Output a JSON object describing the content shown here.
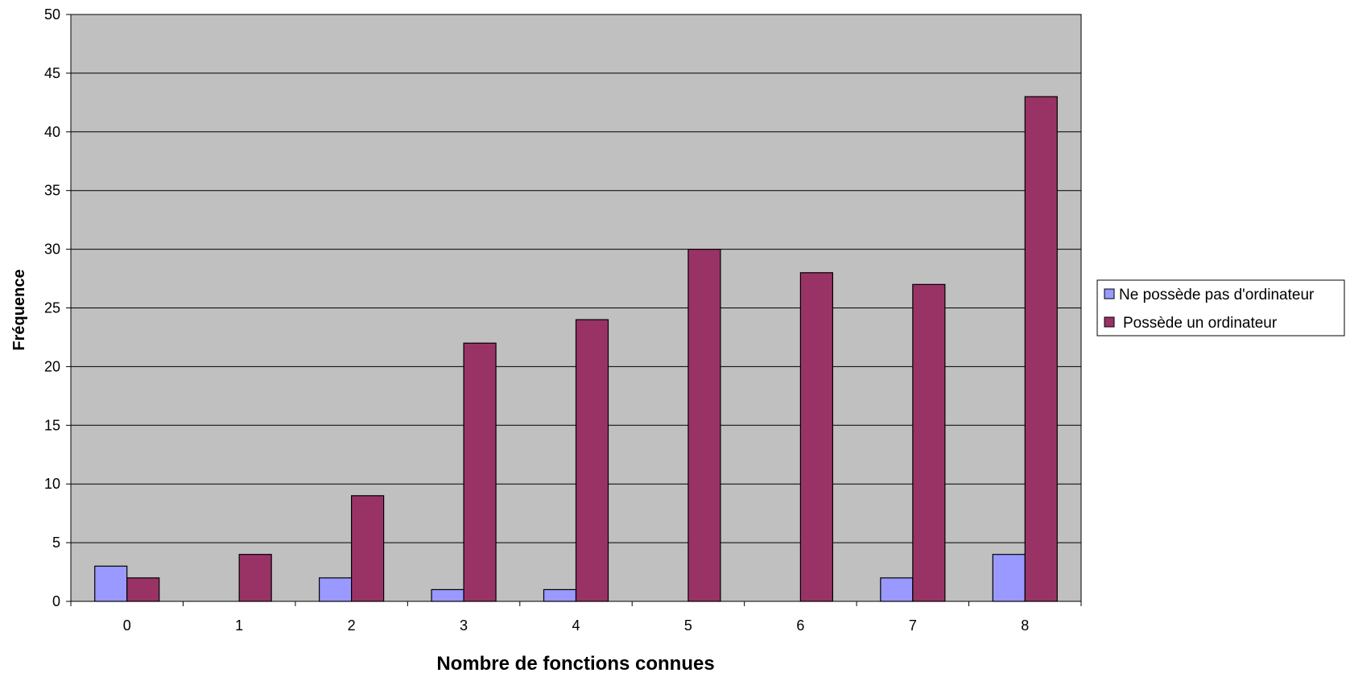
{
  "chart_data": {
    "type": "bar",
    "xlabel": "Nombre de fonctions connues",
    "ylabel": "Fréquence",
    "categories": [
      "0",
      "1",
      "2",
      "3",
      "4",
      "5",
      "6",
      "7",
      "8"
    ],
    "ylim": [
      0,
      50
    ],
    "yticks": [
      "0",
      "5",
      "10",
      "15",
      "20",
      "25",
      "30",
      "35",
      "40",
      "45",
      "50"
    ],
    "grid": true,
    "legend_position": "right",
    "plot_background": "#c0c0c0",
    "series": [
      {
        "name": "Ne possède pas d'ordinateur",
        "color": "#9999ff",
        "values": [
          3,
          0,
          2,
          1,
          1,
          0,
          0,
          2,
          4
        ]
      },
      {
        "name": "Possède un ordinateur",
        "color": "#993366",
        "values": [
          2,
          4,
          9,
          22,
          24,
          30,
          28,
          27,
          43
        ]
      }
    ]
  }
}
